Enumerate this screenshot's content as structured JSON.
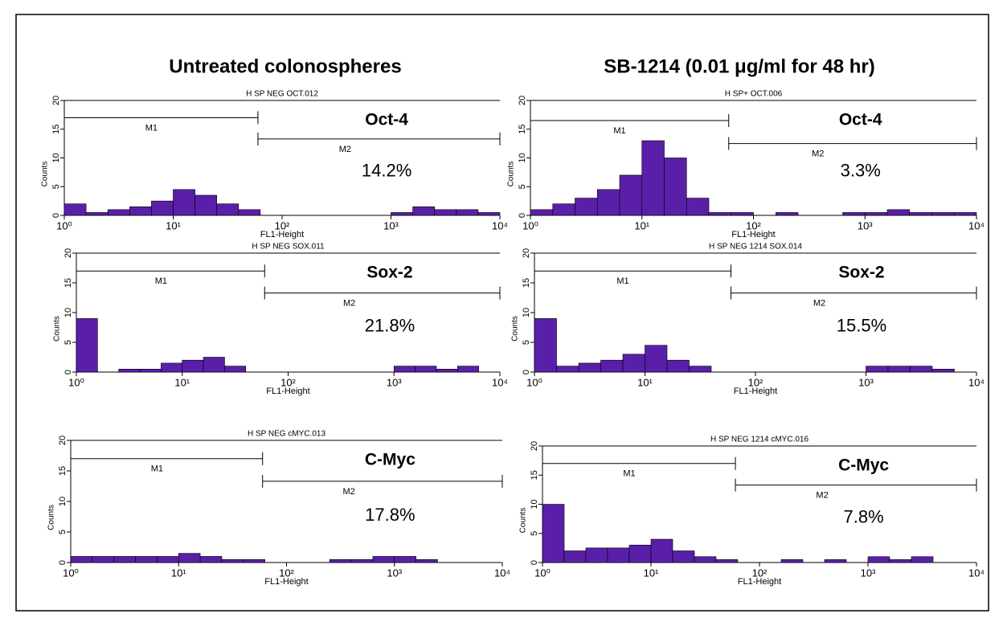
{
  "headers": [
    "Untreated colonospheres",
    "SB-1214 (0.01 μg/ml for 48 hr)"
  ],
  "chart_data": [
    {
      "type": "histogram",
      "title": "H SP NEG OCT.012",
      "marker": "Oct-4",
      "percent": "14.2%",
      "xlabel": "FL1-Height",
      "ylabel": "Counts",
      "log_x": true,
      "color": "#5a1fa8",
      "bins": [
        1,
        1.585,
        2.512,
        3.981,
        6.31,
        10,
        15.85,
        25.12,
        39.81,
        63.1,
        100,
        158.5,
        251.2,
        398.1,
        631,
        1000,
        1585,
        2512,
        3981,
        6310,
        10000
      ],
      "counts": [
        2,
        0.5,
        1,
        1.5,
        2.5,
        4.5,
        3.5,
        2,
        1,
        0,
        0,
        0,
        0,
        0,
        0,
        0.5,
        1.5,
        1,
        1,
        0.5
      ],
      "xlim": [
        1,
        10000
      ],
      "ylim": [
        0,
        20
      ],
      "xticks": [
        {
          "value": 1,
          "label": "10⁰"
        },
        {
          "value": 10,
          "label": "10¹"
        },
        {
          "value": 100,
          "label": "10²"
        },
        {
          "value": 1000,
          "label": "10³"
        },
        {
          "value": 10000,
          "label": "10⁴"
        }
      ],
      "yticks": [
        0,
        5,
        10,
        15,
        20
      ],
      "gates": [
        {
          "label": "M1",
          "range": [
            1,
            60
          ],
          "level": 17
        },
        {
          "label": "M2",
          "range": [
            60,
            10000
          ],
          "level": 13.3
        }
      ]
    },
    {
      "type": "histogram",
      "title": "H SP+ OCT.006",
      "marker": "Oct-4",
      "percent": "3.3%",
      "xlabel": "FL1-Height",
      "ylabel": "Counts",
      "log_x": true,
      "color": "#5a1fa8",
      "bins": [
        1,
        1.585,
        2.512,
        3.981,
        6.31,
        10,
        15.85,
        25.12,
        39.81,
        63.1,
        100,
        158.5,
        251.2,
        398.1,
        631,
        1000,
        1585,
        2512,
        3981,
        6310,
        10000
      ],
      "counts": [
        1,
        2,
        3,
        4.5,
        7,
        13,
        10,
        3,
        0.5,
        0.5,
        0,
        0.5,
        0,
        0,
        0.5,
        0.5,
        1,
        0.5,
        0.5,
        0.5
      ],
      "xlim": [
        1,
        10000
      ],
      "ylim": [
        0,
        20
      ],
      "xticks": [
        {
          "value": 1,
          "label": "10⁰"
        },
        {
          "value": 10,
          "label": "10¹"
        },
        {
          "value": 100,
          "label": "10²"
        },
        {
          "value": 1000,
          "label": "10³"
        },
        {
          "value": 10000,
          "label": "10⁴"
        }
      ],
      "yticks": [
        0,
        5,
        10,
        15,
        20
      ],
      "gates": [
        {
          "label": "M1",
          "range": [
            1,
            60
          ],
          "level": 16.5
        },
        {
          "label": "M2",
          "range": [
            60,
            10000
          ],
          "level": 12.5
        }
      ]
    },
    {
      "type": "histogram",
      "title": "H SP NEG SOX.011",
      "marker": "Sox-2",
      "percent": "21.8%",
      "xlabel": "FL1-Height",
      "ylabel": "Counts",
      "log_x": true,
      "color": "#5a1fa8",
      "bins": [
        1,
        1.585,
        2.512,
        3.981,
        6.31,
        10,
        15.85,
        25.12,
        39.81,
        63.1,
        100,
        158.5,
        251.2,
        398.1,
        631,
        1000,
        1585,
        2512,
        3981,
        6310,
        10000
      ],
      "counts": [
        9,
        0,
        0.5,
        0.5,
        1.5,
        2,
        2.5,
        1,
        0,
        0,
        0,
        0,
        0,
        0,
        0,
        1,
        1,
        0.5,
        1,
        0
      ],
      "xlim": [
        1,
        10000
      ],
      "ylim": [
        0,
        20
      ],
      "xticks": [
        {
          "value": 1,
          "label": "10⁰"
        },
        {
          "value": 10,
          "label": "10¹"
        },
        {
          "value": 100,
          "label": "10²"
        },
        {
          "value": 1000,
          "label": "10³"
        },
        {
          "value": 10000,
          "label": "10⁴"
        }
      ],
      "yticks": [
        0,
        5,
        10,
        15,
        20
      ],
      "gates": [
        {
          "label": "M1",
          "range": [
            1,
            60
          ],
          "level": 17
        },
        {
          "label": "M2",
          "range": [
            60,
            10000
          ],
          "level": 13.3
        }
      ]
    },
    {
      "type": "histogram",
      "title": "H SP NEG 1214 SOX.014",
      "marker": "Sox-2",
      "percent": "15.5%",
      "xlabel": "FL1-Height",
      "ylabel": "Counts",
      "log_x": true,
      "color": "#5a1fa8",
      "bins": [
        1,
        1.585,
        2.512,
        3.981,
        6.31,
        10,
        15.85,
        25.12,
        39.81,
        63.1,
        100,
        158.5,
        251.2,
        398.1,
        631,
        1000,
        1585,
        2512,
        3981,
        6310,
        10000
      ],
      "counts": [
        9,
        1,
        1.5,
        2,
        3,
        4.5,
        2,
        1,
        0,
        0,
        0,
        0,
        0,
        0,
        0,
        1,
        1,
        1,
        0.5,
        0
      ],
      "xlim": [
        1,
        10000
      ],
      "ylim": [
        0,
        20
      ],
      "xticks": [
        {
          "value": 1,
          "label": "10⁰"
        },
        {
          "value": 10,
          "label": "10¹"
        },
        {
          "value": 100,
          "label": "10²"
        },
        {
          "value": 1000,
          "label": "10³"
        },
        {
          "value": 10000,
          "label": "10⁴"
        }
      ],
      "yticks": [
        0,
        5,
        10,
        15,
        20
      ],
      "gates": [
        {
          "label": "M1",
          "range": [
            1,
            60
          ],
          "level": 17
        },
        {
          "label": "M2",
          "range": [
            60,
            10000
          ],
          "level": 13.3
        }
      ]
    },
    {
      "type": "histogram",
      "title": "H SP NEG cMYC.013",
      "marker": "C-Myc",
      "percent": "17.8%",
      "xlabel": "FL1-Height",
      "ylabel": "Counts",
      "log_x": true,
      "color": "#5a1fa8",
      "bins": [
        1,
        1.585,
        2.512,
        3.981,
        6.31,
        10,
        15.85,
        25.12,
        39.81,
        63.1,
        100,
        158.5,
        251.2,
        398.1,
        631,
        1000,
        1585,
        2512,
        3981,
        6310,
        10000
      ],
      "counts": [
        1,
        1,
        1,
        1,
        1,
        1.5,
        1,
        0.5,
        0.5,
        0,
        0,
        0,
        0.5,
        0.5,
        1,
        1,
        0.5,
        0,
        0,
        0
      ],
      "xlim": [
        1,
        10000
      ],
      "ylim": [
        0,
        20
      ],
      "xticks": [
        {
          "value": 1,
          "label": "10⁰"
        },
        {
          "value": 10,
          "label": "10¹"
        },
        {
          "value": 100,
          "label": "10²"
        },
        {
          "value": 1000,
          "label": "10³"
        },
        {
          "value": 10000,
          "label": "10⁴"
        }
      ],
      "yticks": [
        0,
        5,
        10,
        15,
        20
      ],
      "gates": [
        {
          "label": "M1",
          "range": [
            1,
            60
          ],
          "level": 17
        },
        {
          "label": "M2",
          "range": [
            60,
            10000
          ],
          "level": 13.3
        }
      ]
    },
    {
      "type": "histogram",
      "title": "H SP NEG 1214 cMYC.016",
      "marker": "C-Myc",
      "percent": "7.8%",
      "xlabel": "FL1-Height",
      "ylabel": "Counts",
      "log_x": true,
      "color": "#5a1fa8",
      "bins": [
        1,
        1.585,
        2.512,
        3.981,
        6.31,
        10,
        15.85,
        25.12,
        39.81,
        63.1,
        100,
        158.5,
        251.2,
        398.1,
        631,
        1000,
        1585,
        2512,
        3981,
        6310,
        10000
      ],
      "counts": [
        10,
        2,
        2.5,
        2.5,
        3,
        4,
        2,
        1,
        0.5,
        0,
        0,
        0.5,
        0,
        0.5,
        0,
        1,
        0.5,
        1,
        0,
        0
      ],
      "xlim": [
        1,
        10000
      ],
      "ylim": [
        0,
        20
      ],
      "xticks": [
        {
          "value": 1,
          "label": "10⁰"
        },
        {
          "value": 10,
          "label": "10¹"
        },
        {
          "value": 100,
          "label": "10²"
        },
        {
          "value": 1000,
          "label": "10³"
        },
        {
          "value": 10000,
          "label": "10⁴"
        }
      ],
      "yticks": [
        0,
        5,
        10,
        15,
        20
      ],
      "gates": [
        {
          "label": "M1",
          "range": [
            1,
            60
          ],
          "level": 17
        },
        {
          "label": "M2",
          "range": [
            60,
            10000
          ],
          "level": 13.3
        }
      ]
    }
  ]
}
